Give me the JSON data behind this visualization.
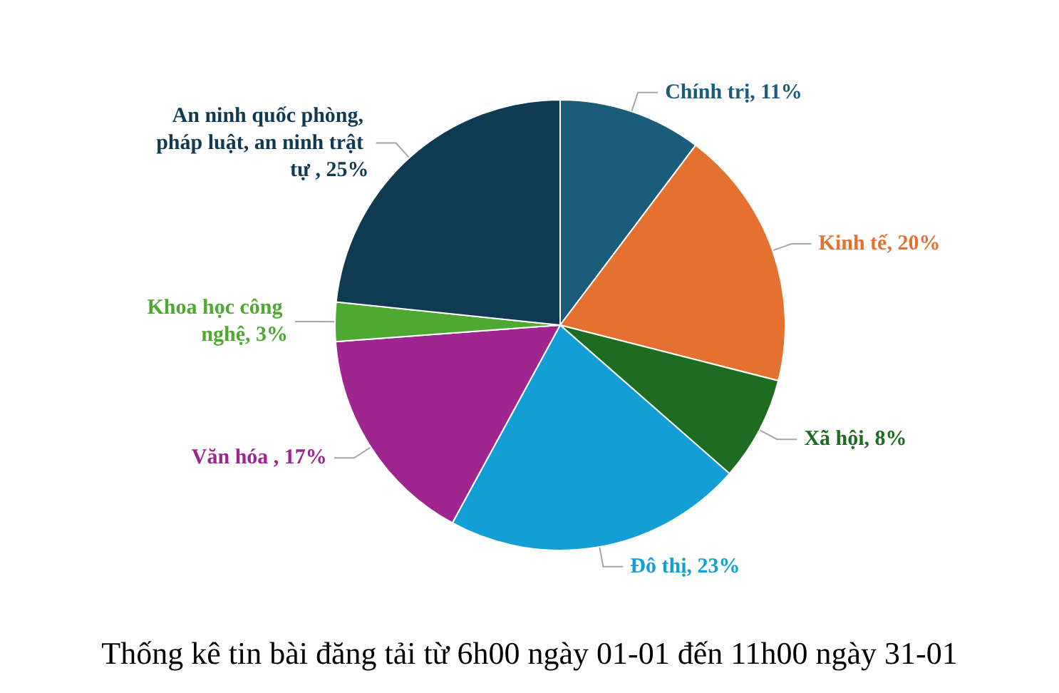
{
  "chart_data": {
    "type": "pie",
    "title": "Thống kê tin bài đăng tải từ 6h00 ngày 01-01 đến 11h00 ngày 31-01",
    "categories": [
      "Chính trị",
      "Kinh tế",
      "Xã hội",
      "Đô thị",
      "Văn hóa ",
      "Khoa học công nghệ",
      "An ninh quốc phòng, pháp luật, an ninh trật tự "
    ],
    "values": [
      11,
      20,
      8,
      23,
      17,
      3,
      25
    ],
    "value_labels": [
      "11%",
      "20%",
      "8%",
      "23%",
      "17%",
      "3%",
      "25%"
    ],
    "colors": [
      "#1a5c7a",
      "#e57130",
      "#1e6b22",
      "#139ed6",
      "#9f268f",
      "#4ea832",
      "#0e3a52"
    ],
    "legend": false
  }
}
